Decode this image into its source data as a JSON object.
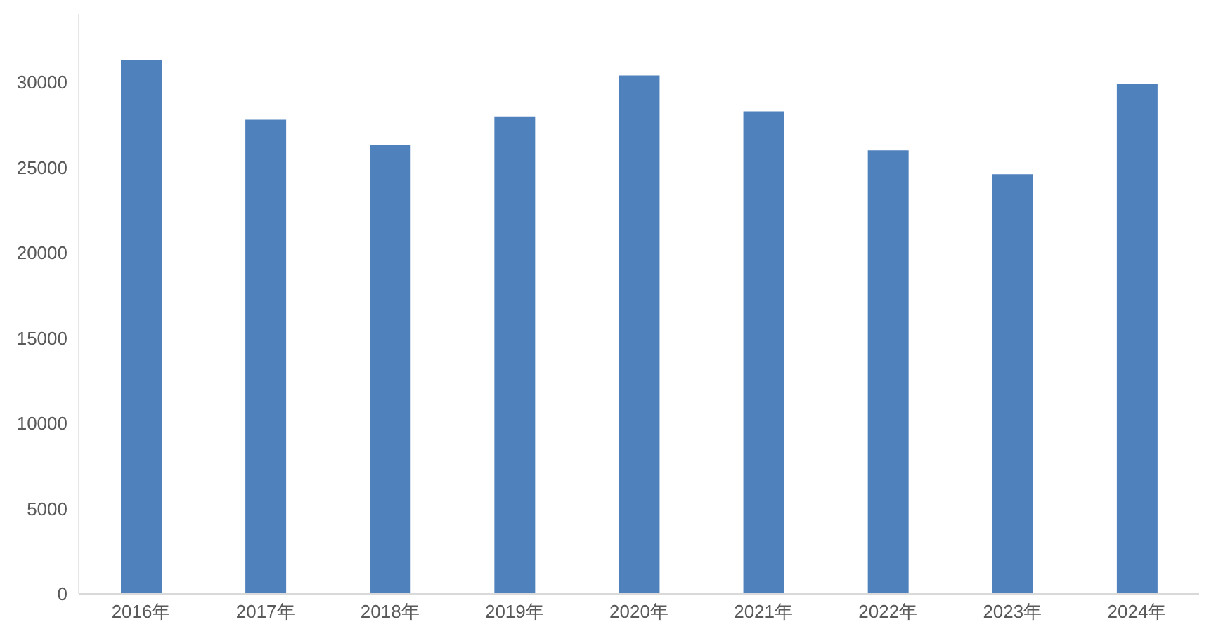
{
  "chart_data": {
    "type": "bar",
    "categories": [
      "2016年",
      "2017年",
      "2018年",
      "2019年",
      "2020年",
      "2021年",
      "2022年",
      "2023年",
      "2024年"
    ],
    "values": [
      31300,
      27800,
      26300,
      28000,
      30400,
      28300,
      26000,
      24600,
      29900
    ],
    "color": "#4f81bd",
    "ylim": [
      0,
      34000
    ],
    "yticks": [
      0,
      5000,
      10000,
      15000,
      20000,
      25000,
      30000
    ],
    "grid": false,
    "legend": false
  }
}
